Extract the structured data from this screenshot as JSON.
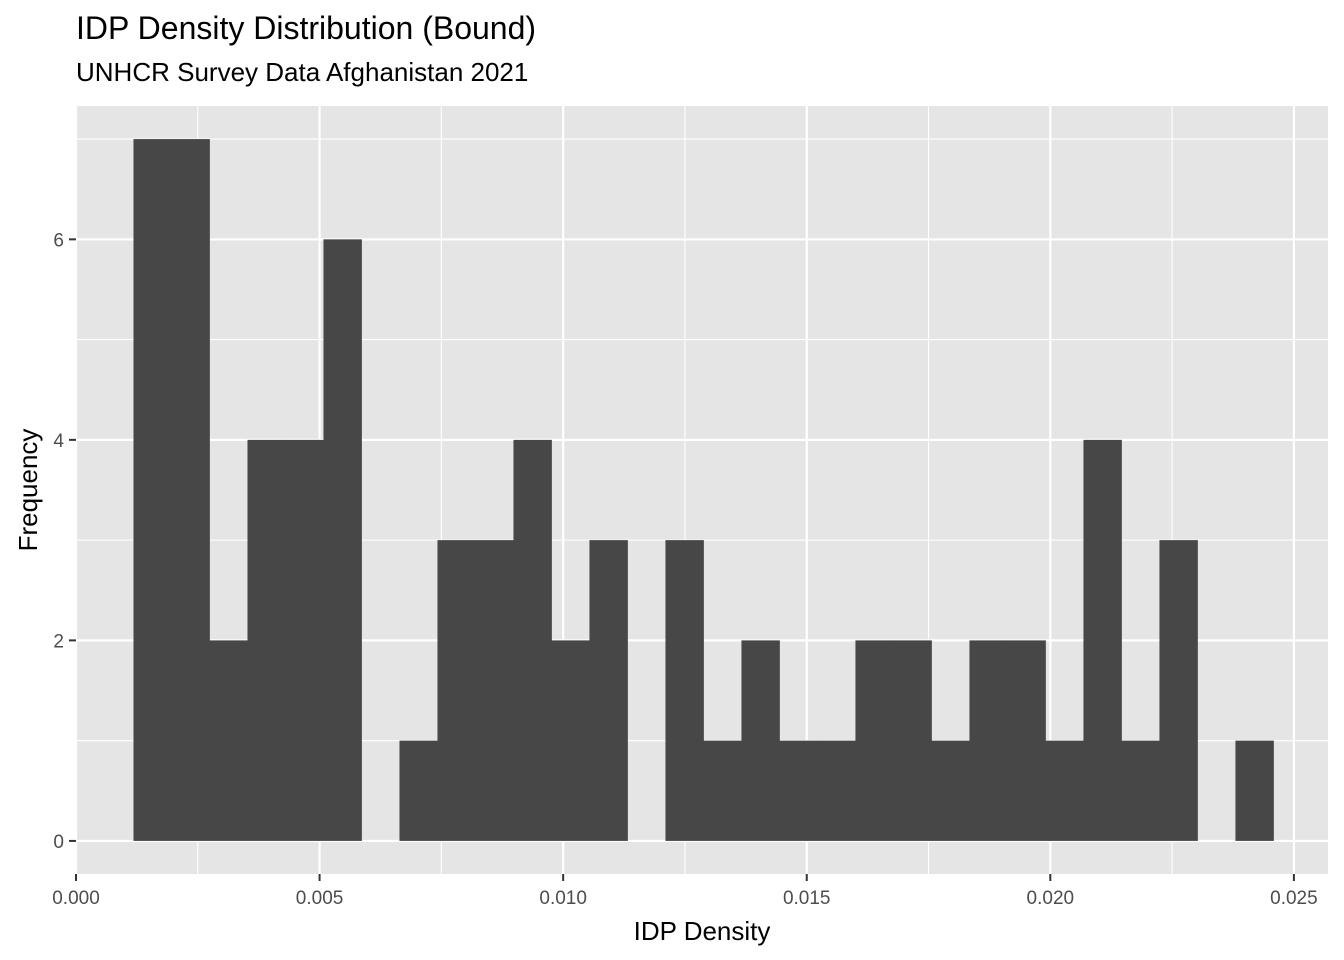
{
  "chart_data": {
    "type": "bar",
    "title": "IDP Density Distribution (Bound)",
    "subtitle": "UNHCR Survey Data Afghanistan 2021",
    "xlabel": "IDP Density",
    "ylabel": "Frequency",
    "xlim": [
      0.0,
      0.0257
    ],
    "ylim": [
      -0.33,
      7.33
    ],
    "x_ticks": [
      "0.000",
      "0.005",
      "0.010",
      "0.015",
      "0.020",
      "0.025"
    ],
    "x_tick_values": [
      0.0,
      0.005,
      0.01,
      0.015,
      0.02,
      0.025
    ],
    "y_ticks": [
      "0",
      "2",
      "4",
      "6"
    ],
    "y_tick_values": [
      0,
      2,
      4,
      6
    ],
    "grid": true,
    "colors": {
      "bar": "#474747",
      "panel": "#e5e5e5",
      "grid": "#ffffff"
    },
    "bins": [
      {
        "x0": 0.00118,
        "x1": 0.00196,
        "count": 7
      },
      {
        "x0": 0.00196,
        "x1": 0.00274,
        "count": 7
      },
      {
        "x0": 0.00274,
        "x1": 0.00352,
        "count": 2
      },
      {
        "x0": 0.00352,
        "x1": 0.0043,
        "count": 4
      },
      {
        "x0": 0.0043,
        "x1": 0.00508,
        "count": 4
      },
      {
        "x0": 0.00508,
        "x1": 0.00586,
        "count": 6
      },
      {
        "x0": 0.00586,
        "x1": 0.00664,
        "count": 0
      },
      {
        "x0": 0.00664,
        "x1": 0.00742,
        "count": 1
      },
      {
        "x0": 0.00742,
        "x1": 0.0082,
        "count": 3
      },
      {
        "x0": 0.0082,
        "x1": 0.00898,
        "count": 3
      },
      {
        "x0": 0.00898,
        "x1": 0.00976,
        "count": 4
      },
      {
        "x0": 0.00976,
        "x1": 0.01054,
        "count": 2
      },
      {
        "x0": 0.01054,
        "x1": 0.01132,
        "count": 3
      },
      {
        "x0": 0.01132,
        "x1": 0.0121,
        "count": 0
      },
      {
        "x0": 0.0121,
        "x1": 0.01288,
        "count": 3
      },
      {
        "x0": 0.01288,
        "x1": 0.01366,
        "count": 1
      },
      {
        "x0": 0.01366,
        "x1": 0.01444,
        "count": 2
      },
      {
        "x0": 0.01444,
        "x1": 0.01522,
        "count": 1
      },
      {
        "x0": 0.01522,
        "x1": 0.016,
        "count": 1
      },
      {
        "x0": 0.016,
        "x1": 0.01678,
        "count": 2
      },
      {
        "x0": 0.01678,
        "x1": 0.01756,
        "count": 2
      },
      {
        "x0": 0.01756,
        "x1": 0.01834,
        "count": 1
      },
      {
        "x0": 0.01834,
        "x1": 0.01912,
        "count": 2
      },
      {
        "x0": 0.01912,
        "x1": 0.0199,
        "count": 2
      },
      {
        "x0": 0.0199,
        "x1": 0.02068,
        "count": 1
      },
      {
        "x0": 0.02068,
        "x1": 0.02146,
        "count": 4
      },
      {
        "x0": 0.02146,
        "x1": 0.02224,
        "count": 1
      },
      {
        "x0": 0.02224,
        "x1": 0.02302,
        "count": 3
      },
      {
        "x0": 0.02302,
        "x1": 0.0238,
        "count": 0
      },
      {
        "x0": 0.0238,
        "x1": 0.02458,
        "count": 1
      }
    ]
  }
}
